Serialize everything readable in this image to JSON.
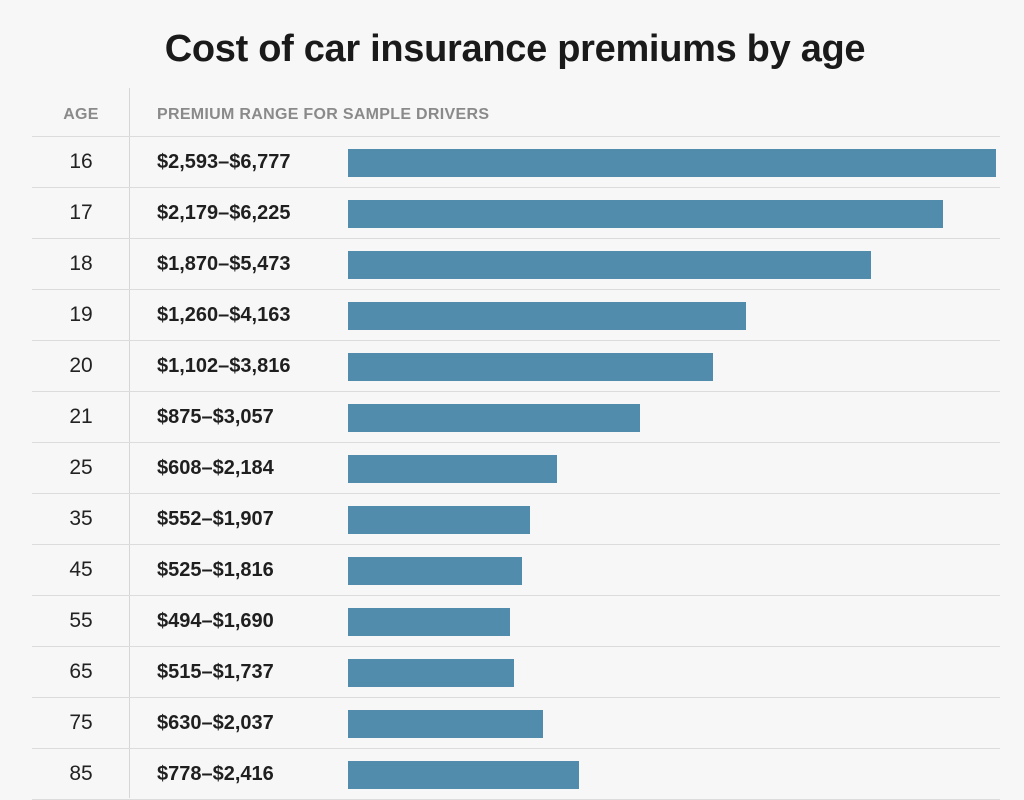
{
  "chart_data": {
    "type": "bar",
    "orientation": "horizontal",
    "title": "Cost of car insurance premiums by age",
    "column_headers": {
      "age": "AGE",
      "range": "PREMIUM RANGE FOR SAMPLE DRIVERS"
    },
    "bar_color": "#528cad",
    "bar_value": "upper end of premium range",
    "rows": [
      {
        "age": "16",
        "range": "$2,593–$6,777",
        "low": 2593,
        "high": 6777
      },
      {
        "age": "17",
        "range": "$2,179–$6,225",
        "low": 2179,
        "high": 6225
      },
      {
        "age": "18",
        "range": "$1,870–$5,473",
        "low": 1870,
        "high": 5473
      },
      {
        "age": "19",
        "range": "$1,260–$4,163",
        "low": 1260,
        "high": 4163
      },
      {
        "age": "20",
        "range": "$1,102–$3,816",
        "low": 1102,
        "high": 3816
      },
      {
        "age": "21",
        "range": "$875–$3,057",
        "low": 875,
        "high": 3057
      },
      {
        "age": "25",
        "range": "$608–$2,184",
        "low": 608,
        "high": 2184
      },
      {
        "age": "35",
        "range": "$552–$1,907",
        "low": 552,
        "high": 1907
      },
      {
        "age": "45",
        "range": "$525–$1,816",
        "low": 525,
        "high": 1816
      },
      {
        "age": "55",
        "range": "$494–$1,690",
        "low": 494,
        "high": 1690
      },
      {
        "age": "65",
        "range": "$515–$1,737",
        "low": 515,
        "high": 1737
      },
      {
        "age": "75",
        "range": "$630–$2,037",
        "low": 630,
        "high": 2037
      },
      {
        "age": "85",
        "range": "$778–$2,416",
        "low": 778,
        "high": 2416
      }
    ]
  }
}
